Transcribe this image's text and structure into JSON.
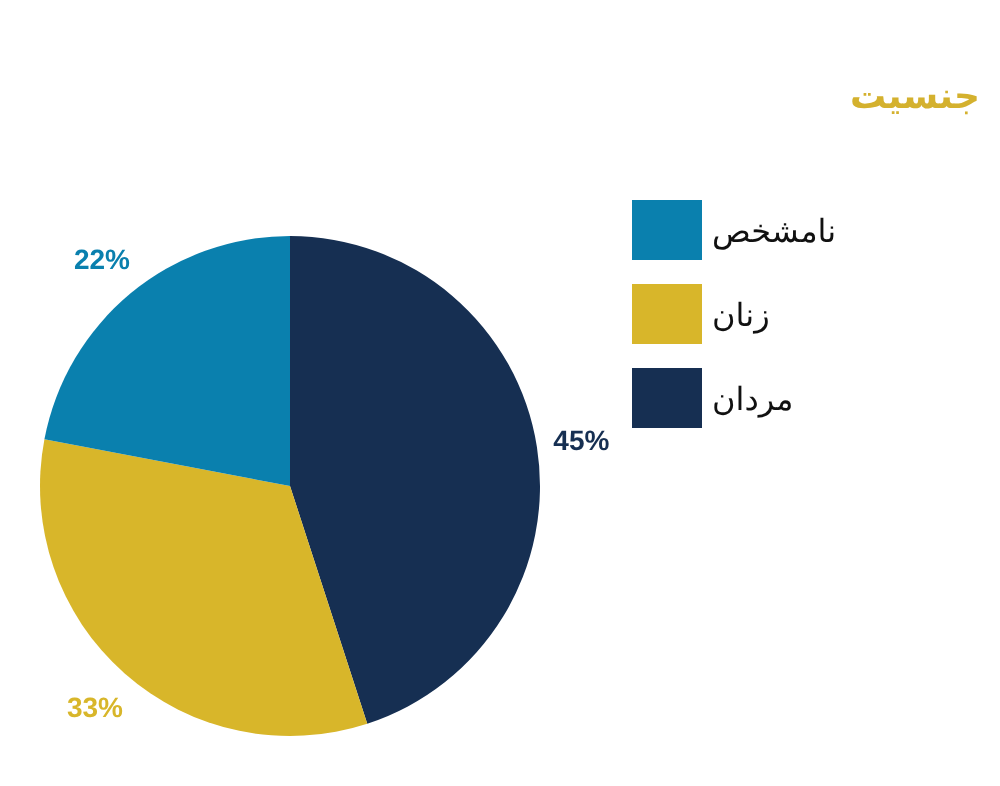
{
  "chart_data": {
    "type": "pie",
    "title": "جنسیت",
    "categories": [
      "مردان",
      "زنان",
      "نامشخص"
    ],
    "values": [
      45,
      33,
      22
    ],
    "value_labels": [
      "45%",
      "33%",
      "22%"
    ],
    "colors": [
      "#162f52",
      "#d8b62a",
      "#0a80ae"
    ],
    "legend": "right"
  }
}
